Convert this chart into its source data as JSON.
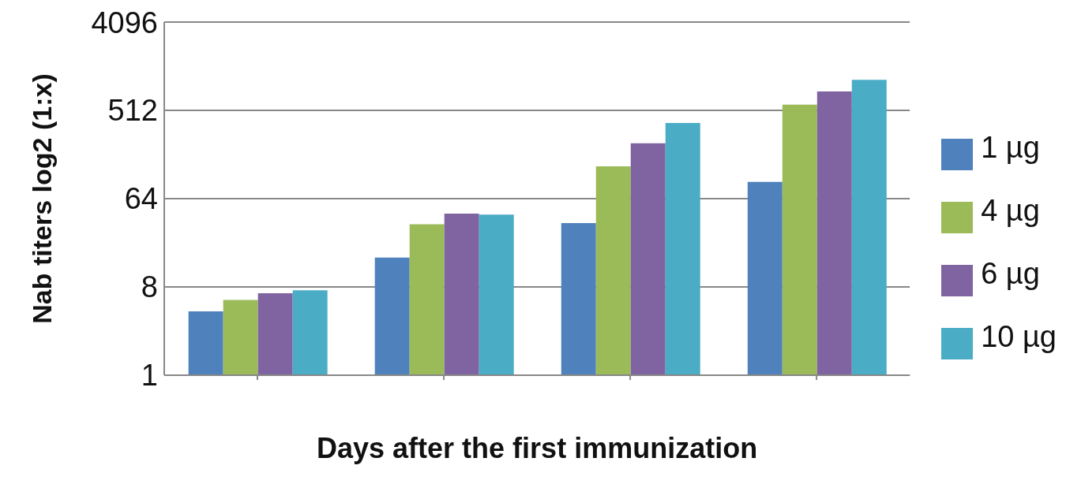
{
  "chart_data": {
    "type": "bar",
    "xlabel": "Days after the first immunization",
    "ylabel": "Nab titers log2 (1:x)",
    "categories": [
      null,
      null,
      null,
      null
    ],
    "series": [
      {
        "name": "1 µg",
        "color": "#4f81bd",
        "values": [
          4.5,
          16,
          36,
          95
        ]
      },
      {
        "name": "4 µg",
        "color": "#9bbb59",
        "values": [
          5.9,
          35,
          137,
          586
        ]
      },
      {
        "name": "6 µg",
        "color": "#8064a2",
        "values": [
          6.9,
          45,
          236,
          800
        ]
      },
      {
        "name": "10 µg",
        "color": "#4bacc6",
        "values": [
          7.4,
          44,
          380,
          1050
        ]
      }
    ],
    "log": "y",
    "ylim": [
      1,
      4096
    ],
    "yticks": [
      1,
      8,
      64,
      512,
      4096
    ],
    "grid": "y",
    "legend": "right"
  }
}
